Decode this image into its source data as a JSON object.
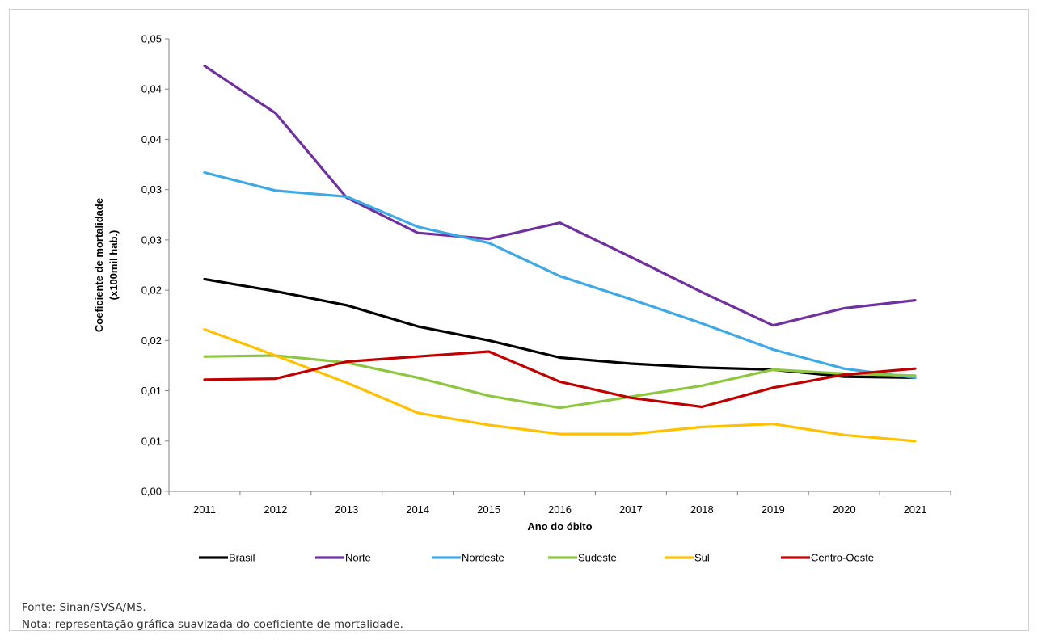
{
  "chart_data": {
    "type": "line",
    "title": "",
    "xlabel": "Ano do óbito",
    "ylabel": [
      "Coeficiente de mortalidade",
      "(x100mil hab.)"
    ],
    "x": [
      "2011",
      "2012",
      "2013",
      "2014",
      "2015",
      "2016",
      "2017",
      "2018",
      "2019",
      "2020",
      "2021"
    ],
    "ylim": [
      0,
      0.045
    ],
    "yticks": [
      0,
      0.005,
      0.01,
      0.015,
      0.02,
      0.025,
      0.03,
      0.035,
      0.04,
      0.045
    ],
    "ytick_labels": [
      "0,00",
      "0,01",
      "0,01",
      "0,02",
      "0,02",
      "0,03",
      "0,03",
      "0,04",
      "0,04",
      "0,05"
    ],
    "grid": false,
    "legend_position": "bottom",
    "series": [
      {
        "name": "Brasil",
        "color": "#000000",
        "values": [
          0.0211,
          0.0199,
          0.0185,
          0.0164,
          0.015,
          0.0133,
          0.0127,
          0.0123,
          0.0121,
          0.0114,
          0.0113
        ]
      },
      {
        "name": "Norte",
        "color": "#7030a0",
        "values": [
          0.0423,
          0.0376,
          0.0292,
          0.0257,
          0.0251,
          0.0267,
          0.0233,
          0.0198,
          0.0165,
          0.0182,
          0.019
        ]
      },
      {
        "name": "Nordeste",
        "color": "#3fa9e6",
        "values": [
          0.0317,
          0.0299,
          0.0293,
          0.0263,
          0.0247,
          0.0214,
          0.0191,
          0.0167,
          0.0141,
          0.0122,
          0.0113
        ]
      },
      {
        "name": "Sudeste",
        "color": "#8dc63f",
        "values": [
          0.0134,
          0.0135,
          0.0128,
          0.0113,
          0.0095,
          0.0083,
          0.0094,
          0.0105,
          0.0121,
          0.0117,
          0.0115
        ]
      },
      {
        "name": "Sul",
        "color": "#ffc000",
        "values": [
          0.0161,
          0.0135,
          0.0108,
          0.0078,
          0.0066,
          0.0057,
          0.0057,
          0.0064,
          0.0067,
          0.0056,
          0.005
        ]
      },
      {
        "name": "Centro-Oeste",
        "color": "#c00000",
        "values": [
          0.0111,
          0.0112,
          0.0129,
          0.0134,
          0.0139,
          0.0109,
          0.0093,
          0.0084,
          0.0103,
          0.0116,
          0.0122
        ]
      }
    ]
  },
  "notes": {
    "source": "Fonte: Sinan/SVSA/MS.",
    "note": "Nota: representação gráfica suavizada do coeficiente de mortalidade."
  }
}
